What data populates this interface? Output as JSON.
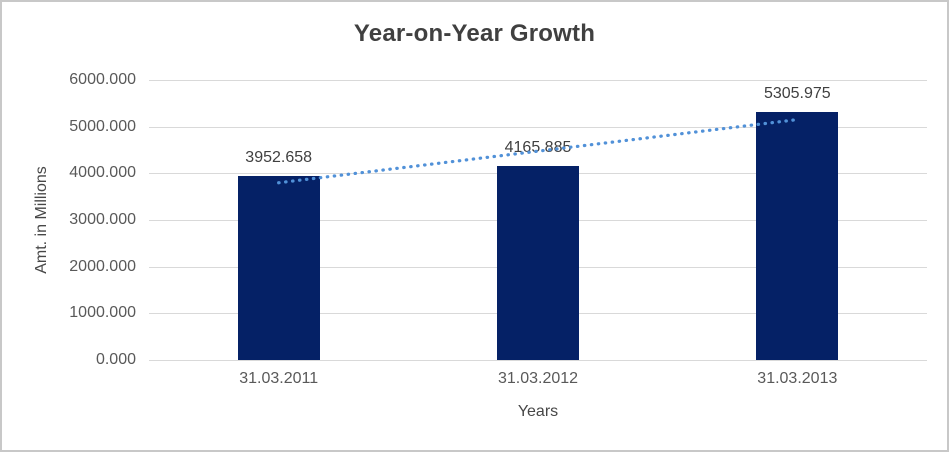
{
  "chart_data": {
    "type": "bar",
    "title": "Year-on-Year Growth",
    "xlabel": "Years",
    "ylabel": "Amt. in Millions",
    "categories": [
      "31.03.2011",
      "31.03.2012",
      "31.03.2013"
    ],
    "values": [
      3952.658,
      4165.885,
      5305.975
    ],
    "data_labels": [
      "3952.658",
      "4165.885",
      "5305.975"
    ],
    "y_ticks": [
      "6000.000",
      "5000.000",
      "4000.000",
      "3000.000",
      "2000.000",
      "1000.000",
      "0.000"
    ],
    "ylim": [
      0,
      6000
    ],
    "grid": true,
    "legend": "none",
    "trendline": {
      "type": "linear",
      "style": "dotted",
      "color": "#5191d8"
    },
    "colors": {
      "bar": "#052166",
      "gridline": "#d9d9d9",
      "tick_text": "#595959",
      "title_text": "#404040"
    }
  }
}
